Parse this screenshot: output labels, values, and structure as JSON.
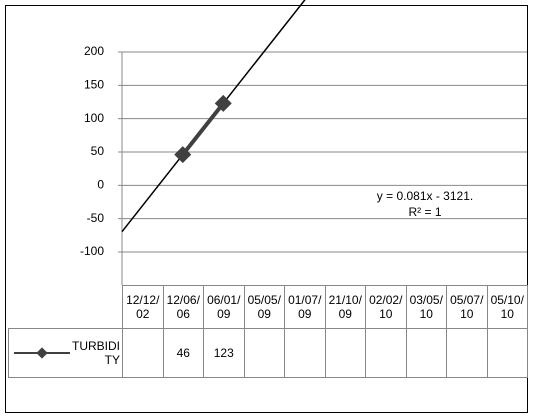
{
  "chart_data": {
    "type": "line",
    "categories": [
      "12/12/02",
      "12/06/06",
      "06/01/09",
      "05/05/09",
      "01/07/09",
      "21/10/09",
      "02/02/10",
      "03/05/10",
      "05/07/10",
      "05/10/10"
    ],
    "series": [
      {
        "name": "TURBIDITY",
        "color": "#404040",
        "values": [
          null,
          46,
          123,
          null,
          null,
          null,
          null,
          null,
          null,
          null
        ]
      }
    ],
    "ylim": [
      -100,
      200
    ],
    "yticks": [
      200,
      150,
      100,
      50,
      0,
      -50,
      -100
    ],
    "grid": true,
    "annotations": [
      "y = 0.081x - 3121.",
      "R² = 1"
    ]
  }
}
